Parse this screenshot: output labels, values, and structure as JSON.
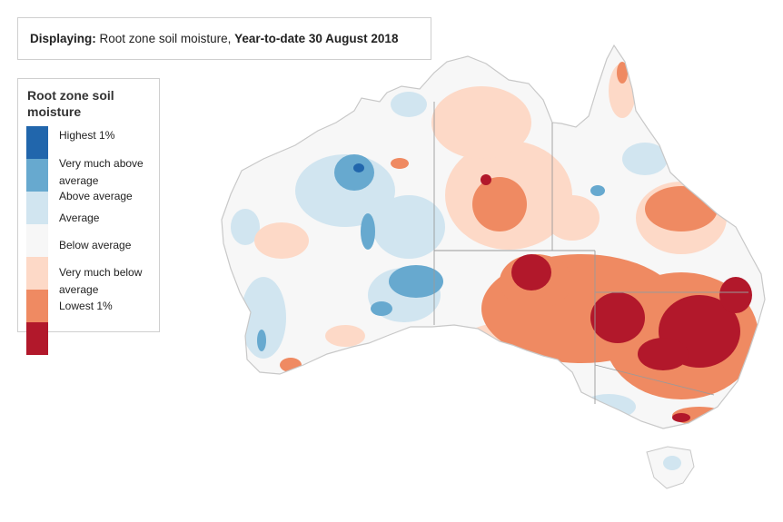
{
  "display": {
    "prefix": "Displaying:",
    "layer": "Root zone soil moisture",
    "separator": ",",
    "period": "Year-to-date 30 August 2018"
  },
  "legend": {
    "title": "Root zone soil moisture",
    "items": [
      {
        "label": "Highest 1%",
        "color": "#2166ac"
      },
      {
        "label": "Very much above average",
        "color": "#67a9cf"
      },
      {
        "label": "Above average",
        "color": "#d1e5f0"
      },
      {
        "label": "Average",
        "color": "#f7f7f7"
      },
      {
        "label": "Below average",
        "color": "#fdd9c7"
      },
      {
        "label": "Very much below average",
        "color": "#ef8a62"
      },
      {
        "label": "Lowest 1%",
        "color": "#b2182b"
      }
    ]
  },
  "map": {
    "region": "Australia",
    "outline_color": "#c8c8c8"
  }
}
